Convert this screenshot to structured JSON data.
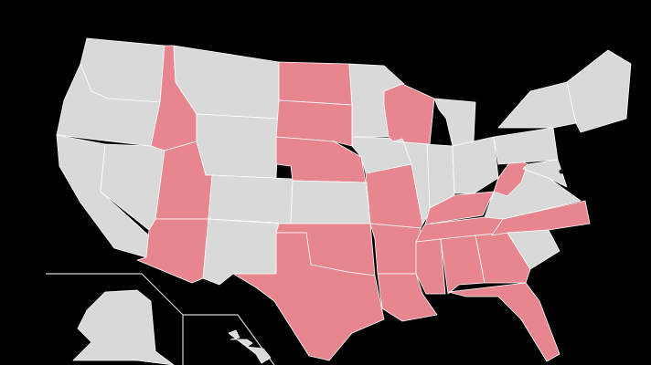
{
  "map": {
    "background_color": "#000000",
    "highlight_color": "#e8868f",
    "default_color": "#d9d9d9",
    "border_color": "#ffffff",
    "states": [
      {
        "id": "WA",
        "highlighted": false
      },
      {
        "id": "OR",
        "highlighted": false
      },
      {
        "id": "CA",
        "highlighted": false
      },
      {
        "id": "NV",
        "highlighted": false
      },
      {
        "id": "ID",
        "highlighted": true
      },
      {
        "id": "MT",
        "highlighted": false
      },
      {
        "id": "WY",
        "highlighted": false
      },
      {
        "id": "UT",
        "highlighted": true
      },
      {
        "id": "AZ",
        "highlighted": true
      },
      {
        "id": "CO",
        "highlighted": false
      },
      {
        "id": "NM",
        "highlighted": false
      },
      {
        "id": "ND",
        "highlighted": true
      },
      {
        "id": "SD",
        "highlighted": true
      },
      {
        "id": "NE",
        "highlighted": true
      },
      {
        "id": "KS",
        "highlighted": false
      },
      {
        "id": "OK",
        "highlighted": true
      },
      {
        "id": "TX",
        "highlighted": true
      },
      {
        "id": "MN",
        "highlighted": false
      },
      {
        "id": "IA",
        "highlighted": false
      },
      {
        "id": "MO",
        "highlighted": true
      },
      {
        "id": "AR",
        "highlighted": true
      },
      {
        "id": "LA",
        "highlighted": true
      },
      {
        "id": "WI",
        "highlighted": true
      },
      {
        "id": "IL",
        "highlighted": false
      },
      {
        "id": "MI",
        "highlighted": false
      },
      {
        "id": "IN",
        "highlighted": false
      },
      {
        "id": "OH",
        "highlighted": false
      },
      {
        "id": "KY",
        "highlighted": true
      },
      {
        "id": "TN",
        "highlighted": true
      },
      {
        "id": "MS",
        "highlighted": true
      },
      {
        "id": "AL",
        "highlighted": true
      },
      {
        "id": "GA",
        "highlighted": true
      },
      {
        "id": "FL",
        "highlighted": true
      },
      {
        "id": "SC",
        "highlighted": false
      },
      {
        "id": "NC",
        "highlighted": true
      },
      {
        "id": "VA",
        "highlighted": false
      },
      {
        "id": "WV",
        "highlighted": true
      },
      {
        "id": "PA",
        "highlighted": false
      },
      {
        "id": "NY",
        "highlighted": false
      },
      {
        "id": "NE-REGION",
        "highlighted": false
      },
      {
        "id": "MID-ATLANTIC",
        "highlighted": false
      },
      {
        "id": "AK",
        "highlighted": false
      },
      {
        "id": "HI",
        "highlighted": false
      }
    ]
  }
}
